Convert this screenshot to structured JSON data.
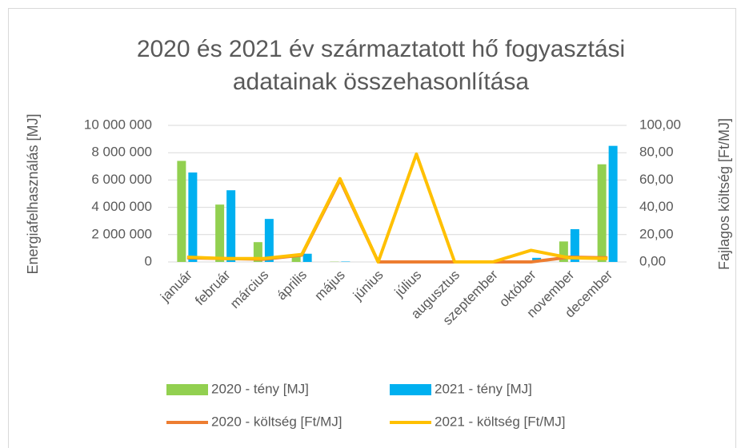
{
  "chart_data": {
    "type": "bar-line",
    "title": [
      "2020 és 2021 év származtatott hő fogyasztási",
      "adatainak összehasonlítása"
    ],
    "y_label": "Energiafelhasználás [MJ]",
    "y2_label": "Fajlagos költség [Ft/MJ]",
    "categories": [
      "január",
      "február",
      "március",
      "április",
      "május",
      "június",
      "július",
      "augusztus",
      "szeptember",
      "október",
      "november",
      "december"
    ],
    "series": [
      {
        "name": "2020 - tény [MJ]",
        "type": "bar",
        "color": "#92d050",
        "values": [
          7400000,
          4200000,
          1450000,
          400000,
          20000,
          0,
          0,
          0,
          0,
          0,
          1500000,
          7150000
        ]
      },
      {
        "name": "2021 - tény [MJ]",
        "type": "bar",
        "color": "#00b0f0",
        "values": [
          6550000,
          5250000,
          3150000,
          600000,
          30000,
          0,
          0,
          0,
          0,
          300000,
          2400000,
          8500000
        ]
      },
      {
        "name": "2020 - költség [Ft/MJ]",
        "type": "line",
        "axis": "y2",
        "color": "#ed7d31",
        "values": [
          3,
          2.5,
          2,
          5,
          60,
          0,
          0,
          0,
          0,
          0,
          3.5,
          3
        ]
      },
      {
        "name": "2021 - költség [Ft/MJ]",
        "type": "line",
        "axis": "y2",
        "color": "#ffc000",
        "values": [
          3.5,
          2.5,
          2.5,
          5.5,
          61,
          0,
          79,
          0,
          0,
          8.5,
          3,
          2.5
        ]
      }
    ],
    "ylim": [
      0,
      10000000
    ],
    "yticks": [
      0,
      {
        "value": 2000000,
        "label": "2 000 000"
      },
      {
        "value": 4000000,
        "label": "4 000 000"
      },
      {
        "value": 6000000,
        "label": "6 000 000"
      },
      {
        "value": 8000000,
        "label": "8 000 000"
      },
      {
        "value": 10000000,
        "label": "10 000 000"
      }
    ],
    "y2lim": [
      0,
      100
    ],
    "y2ticks": [
      {
        "value": 0,
        "label": "0,00"
      },
      {
        "value": 20,
        "label": "20,00"
      },
      {
        "value": 40,
        "label": "40,00"
      },
      {
        "value": 60,
        "label": "60,00"
      },
      {
        "value": 80,
        "label": "80,00"
      },
      {
        "value": 100,
        "label": "100,00"
      }
    ],
    "grid": true
  }
}
